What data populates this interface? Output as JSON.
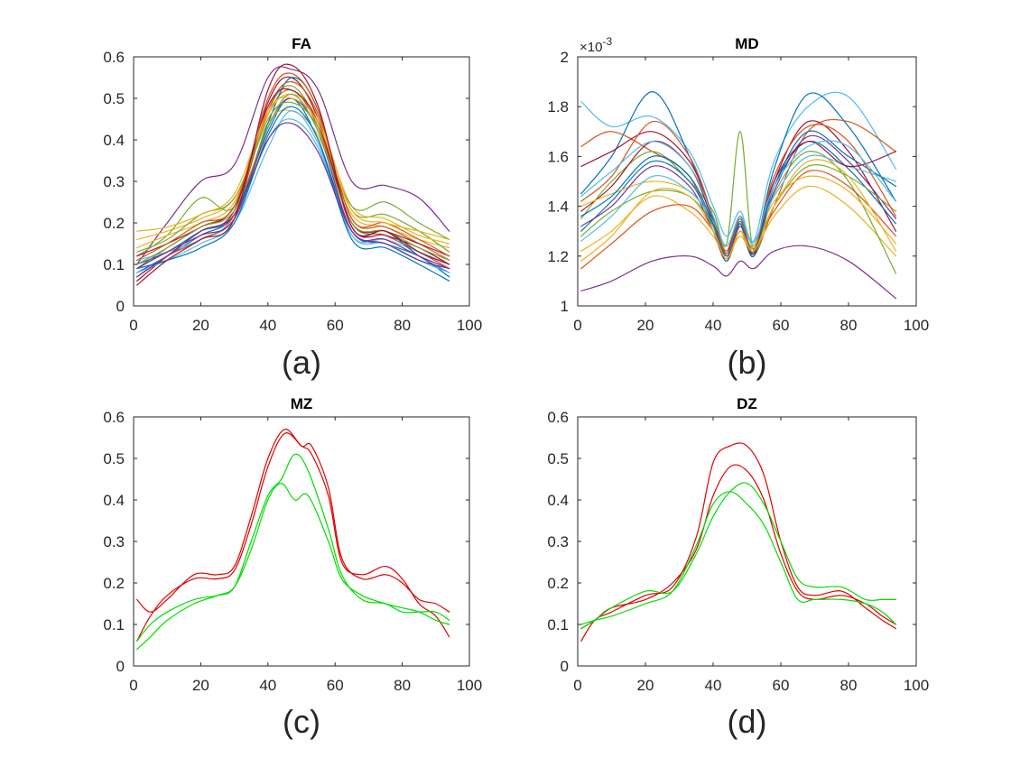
{
  "chart_data": [
    {
      "type": "line",
      "title": "FA",
      "caption": "(a)",
      "xlim": [
        0,
        100
      ],
      "ylim": [
        0,
        0.6
      ],
      "xticks": [
        "0",
        "20",
        "40",
        "60",
        "80",
        "100"
      ],
      "yticks": [
        "0",
        "0.1",
        "0.2",
        "0.3",
        "0.4",
        "0.5",
        "0.6"
      ],
      "x_sample": [
        1,
        10,
        20,
        30,
        40,
        47,
        55,
        65,
        75,
        85,
        94
      ],
      "series": [
        {
          "color": "#7E2F8E",
          "values": [
            0.1,
            0.2,
            0.3,
            0.34,
            0.55,
            0.57,
            0.52,
            0.3,
            0.29,
            0.26,
            0.18
          ]
        },
        {
          "color": "#0072BD",
          "values": [
            0.08,
            0.12,
            0.17,
            0.22,
            0.42,
            0.5,
            0.4,
            0.18,
            0.15,
            0.12,
            0.07
          ]
        },
        {
          "color": "#D95319",
          "values": [
            0.09,
            0.14,
            0.19,
            0.24,
            0.46,
            0.52,
            0.43,
            0.2,
            0.17,
            0.13,
            0.09
          ]
        },
        {
          "color": "#EDB120",
          "values": [
            0.16,
            0.18,
            0.21,
            0.26,
            0.44,
            0.47,
            0.41,
            0.22,
            0.19,
            0.16,
            0.14
          ]
        },
        {
          "color": "#77AC30",
          "values": [
            0.12,
            0.17,
            0.26,
            0.24,
            0.47,
            0.53,
            0.44,
            0.23,
            0.22,
            0.18,
            0.13
          ]
        },
        {
          "color": "#4DBEEE",
          "values": [
            0.11,
            0.13,
            0.16,
            0.21,
            0.4,
            0.45,
            0.38,
            0.17,
            0.16,
            0.13,
            0.1
          ]
        },
        {
          "color": "#A2142F",
          "values": [
            0.06,
            0.12,
            0.18,
            0.23,
            0.49,
            0.55,
            0.45,
            0.19,
            0.17,
            0.14,
            0.1
          ]
        },
        {
          "color": "#0072BD",
          "values": [
            0.1,
            0.13,
            0.18,
            0.22,
            0.44,
            0.55,
            0.47,
            0.19,
            0.18,
            0.12,
            0.08
          ]
        },
        {
          "color": "#D95319",
          "values": [
            0.07,
            0.12,
            0.16,
            0.22,
            0.47,
            0.54,
            0.46,
            0.21,
            0.19,
            0.15,
            0.11
          ]
        },
        {
          "color": "#EDB120",
          "values": [
            0.14,
            0.17,
            0.2,
            0.25,
            0.46,
            0.51,
            0.45,
            0.24,
            0.21,
            0.17,
            0.15
          ]
        },
        {
          "color": "#7E2F8E",
          "values": [
            0.09,
            0.13,
            0.17,
            0.21,
            0.43,
            0.5,
            0.42,
            0.18,
            0.16,
            0.12,
            0.09
          ]
        },
        {
          "color": "#77AC30",
          "values": [
            0.13,
            0.16,
            0.22,
            0.26,
            0.45,
            0.49,
            0.43,
            0.24,
            0.25,
            0.2,
            0.16
          ]
        },
        {
          "color": "#4DBEEE",
          "values": [
            0.08,
            0.11,
            0.15,
            0.2,
            0.38,
            0.47,
            0.39,
            0.17,
            0.15,
            0.11,
            0.08
          ]
        },
        {
          "color": "#A2142F",
          "values": [
            0.12,
            0.15,
            0.19,
            0.24,
            0.48,
            0.52,
            0.44,
            0.2,
            0.18,
            0.15,
            0.12
          ]
        },
        {
          "color": "#0072BD",
          "values": [
            0.09,
            0.11,
            0.14,
            0.2,
            0.41,
            0.48,
            0.4,
            0.16,
            0.14,
            0.1,
            0.06
          ]
        },
        {
          "color": "#D95319",
          "values": [
            0.11,
            0.15,
            0.2,
            0.24,
            0.5,
            0.56,
            0.47,
            0.21,
            0.2,
            0.16,
            0.12
          ]
        },
        {
          "color": "#EDB120",
          "values": [
            0.18,
            0.19,
            0.22,
            0.27,
            0.47,
            0.5,
            0.44,
            0.23,
            0.2,
            0.18,
            0.16
          ]
        },
        {
          "color": "#7E2F8E",
          "values": [
            0.07,
            0.12,
            0.18,
            0.22,
            0.4,
            0.44,
            0.37,
            0.18,
            0.15,
            0.11,
            0.09
          ]
        },
        {
          "color": "#77AC30",
          "values": [
            0.1,
            0.14,
            0.19,
            0.23,
            0.43,
            0.51,
            0.42,
            0.2,
            0.18,
            0.14,
            0.11
          ]
        },
        {
          "color": "#A2142F",
          "values": [
            0.05,
            0.11,
            0.16,
            0.21,
            0.52,
            0.58,
            0.48,
            0.19,
            0.18,
            0.13,
            0.1
          ]
        }
      ]
    },
    {
      "type": "line",
      "title": "MD",
      "caption": "(b)",
      "xlim": [
        0,
        100
      ],
      "ylim": [
        1,
        2
      ],
      "exponent_label": "×10",
      "exponent_power": "-3",
      "xticks": [
        "0",
        "20",
        "40",
        "60",
        "80",
        "100"
      ],
      "yticks": [
        "1",
        "1.2",
        "1.4",
        "1.6",
        "1.8",
        "2"
      ],
      "x_sample": [
        1,
        10,
        22,
        33,
        40,
        44,
        48,
        52,
        58,
        68,
        80,
        94
      ],
      "series": [
        {
          "color": "#4DBEEE",
          "values": [
            1.82,
            1.72,
            1.76,
            1.62,
            1.4,
            1.28,
            1.38,
            1.26,
            1.58,
            1.8,
            1.84,
            1.55
          ]
        },
        {
          "color": "#0072BD",
          "values": [
            1.45,
            1.6,
            1.86,
            1.6,
            1.35,
            1.2,
            1.32,
            1.22,
            1.55,
            1.85,
            1.72,
            1.42
          ]
        },
        {
          "color": "#D95319",
          "values": [
            1.64,
            1.7,
            1.62,
            1.52,
            1.3,
            1.18,
            1.3,
            1.2,
            1.4,
            1.7,
            1.74,
            1.62
          ]
        },
        {
          "color": "#7E2F8E",
          "values": [
            1.06,
            1.1,
            1.18,
            1.2,
            1.16,
            1.12,
            1.18,
            1.15,
            1.22,
            1.24,
            1.18,
            1.03
          ]
        },
        {
          "color": "#EDB120",
          "values": [
            1.22,
            1.3,
            1.44,
            1.38,
            1.28,
            1.2,
            1.28,
            1.22,
            1.36,
            1.48,
            1.4,
            1.2
          ]
        },
        {
          "color": "#77AC30",
          "values": [
            1.35,
            1.5,
            1.62,
            1.5,
            1.38,
            1.25,
            1.7,
            1.22,
            1.45,
            1.62,
            1.5,
            1.13
          ]
        },
        {
          "color": "#A2142F",
          "values": [
            1.38,
            1.48,
            1.66,
            1.56,
            1.34,
            1.22,
            1.36,
            1.22,
            1.5,
            1.74,
            1.62,
            1.3
          ]
        },
        {
          "color": "#0072BD",
          "values": [
            1.3,
            1.42,
            1.58,
            1.5,
            1.32,
            1.18,
            1.34,
            1.2,
            1.48,
            1.66,
            1.55,
            1.33
          ]
        },
        {
          "color": "#D95319",
          "values": [
            1.15,
            1.25,
            1.38,
            1.4,
            1.3,
            1.2,
            1.3,
            1.24,
            1.38,
            1.54,
            1.48,
            1.28
          ]
        },
        {
          "color": "#EDB120",
          "values": [
            1.4,
            1.45,
            1.5,
            1.46,
            1.34,
            1.22,
            1.3,
            1.24,
            1.42,
            1.52,
            1.46,
            1.25
          ]
        },
        {
          "color": "#7E2F8E",
          "values": [
            1.32,
            1.4,
            1.56,
            1.48,
            1.3,
            1.19,
            1.32,
            1.21,
            1.46,
            1.68,
            1.58,
            1.35
          ]
        },
        {
          "color": "#4DBEEE",
          "values": [
            1.26,
            1.36,
            1.52,
            1.46,
            1.34,
            1.24,
            1.36,
            1.26,
            1.44,
            1.6,
            1.56,
            1.5
          ]
        },
        {
          "color": "#77AC30",
          "values": [
            1.28,
            1.38,
            1.46,
            1.44,
            1.32,
            1.21,
            1.33,
            1.23,
            1.4,
            1.56,
            1.52,
            1.38
          ]
        },
        {
          "color": "#A2142F",
          "values": [
            1.56,
            1.62,
            1.7,
            1.58,
            1.36,
            1.21,
            1.36,
            1.21,
            1.5,
            1.66,
            1.56,
            1.62
          ]
        },
        {
          "color": "#0072BD",
          "values": [
            1.36,
            1.44,
            1.6,
            1.52,
            1.33,
            1.2,
            1.33,
            1.2,
            1.48,
            1.7,
            1.6,
            1.48
          ]
        },
        {
          "color": "#D95319",
          "values": [
            1.42,
            1.52,
            1.74,
            1.6,
            1.36,
            1.21,
            1.35,
            1.22,
            1.52,
            1.72,
            1.66,
            1.36
          ]
        },
        {
          "color": "#EDB120",
          "values": [
            1.18,
            1.28,
            1.46,
            1.44,
            1.3,
            1.19,
            1.3,
            1.22,
            1.4,
            1.58,
            1.52,
            1.22
          ]
        },
        {
          "color": "#4DBEEE",
          "values": [
            1.44,
            1.54,
            1.66,
            1.56,
            1.36,
            1.24,
            1.36,
            1.25,
            1.48,
            1.64,
            1.64,
            1.42
          ]
        }
      ]
    },
    {
      "type": "line",
      "title": "MZ",
      "caption": "(c)",
      "xlim": [
        0,
        100
      ],
      "ylim": [
        0,
        0.6
      ],
      "xticks": [
        "0",
        "20",
        "40",
        "60",
        "80",
        "100"
      ],
      "yticks": [
        "0",
        "0.1",
        "0.2",
        "0.3",
        "0.4",
        "0.5",
        "0.6"
      ],
      "series": [
        {
          "color": "#E00000",
          "x": [
            1,
            5,
            10,
            18,
            25,
            30,
            35,
            40,
            45,
            50,
            53,
            58,
            62,
            68,
            75,
            80,
            85,
            90,
            94
          ],
          "values": [
            0.16,
            0.13,
            0.16,
            0.22,
            0.22,
            0.24,
            0.36,
            0.5,
            0.57,
            0.53,
            0.53,
            0.43,
            0.26,
            0.21,
            0.22,
            0.2,
            0.16,
            0.15,
            0.13
          ]
        },
        {
          "color": "#E00000",
          "x": [
            1,
            5,
            10,
            18,
            25,
            30,
            35,
            40,
            45,
            50,
            53,
            58,
            62,
            68,
            75,
            80,
            85,
            90,
            94
          ],
          "values": [
            0.06,
            0.12,
            0.17,
            0.21,
            0.21,
            0.23,
            0.34,
            0.48,
            0.56,
            0.53,
            0.51,
            0.41,
            0.25,
            0.22,
            0.24,
            0.21,
            0.15,
            0.12,
            0.07
          ]
        },
        {
          "color": "#00DD00",
          "x": [
            1,
            5,
            10,
            18,
            25,
            30,
            35,
            40,
            44,
            48,
            52,
            58,
            62,
            68,
            75,
            80,
            85,
            90,
            94
          ],
          "values": [
            0.06,
            0.1,
            0.13,
            0.16,
            0.17,
            0.19,
            0.3,
            0.41,
            0.45,
            0.51,
            0.47,
            0.33,
            0.22,
            0.16,
            0.15,
            0.13,
            0.13,
            0.13,
            0.11
          ]
        },
        {
          "color": "#00DD00",
          "x": [
            1,
            5,
            10,
            18,
            25,
            30,
            35,
            40,
            44,
            48,
            52,
            58,
            62,
            68,
            75,
            80,
            85,
            90,
            94
          ],
          "values": [
            0.04,
            0.07,
            0.11,
            0.15,
            0.17,
            0.19,
            0.28,
            0.4,
            0.44,
            0.4,
            0.41,
            0.3,
            0.21,
            0.17,
            0.15,
            0.14,
            0.13,
            0.11,
            0.1
          ]
        }
      ]
    },
    {
      "type": "line",
      "title": "DZ",
      "caption": "(d)",
      "xlim": [
        0,
        100
      ],
      "ylim": [
        0,
        0.6
      ],
      "xticks": [
        "0",
        "20",
        "40",
        "60",
        "80",
        "100"
      ],
      "yticks": [
        "0",
        "0.1",
        "0.2",
        "0.3",
        "0.4",
        "0.5",
        "0.6"
      ],
      "series": [
        {
          "color": "#E00000",
          "x": [
            1,
            5,
            10,
            20,
            28,
            35,
            40,
            45,
            50,
            55,
            60,
            65,
            70,
            78,
            85,
            90,
            94
          ],
          "values": [
            0.06,
            0.11,
            0.13,
            0.17,
            0.19,
            0.31,
            0.49,
            0.53,
            0.53,
            0.46,
            0.3,
            0.19,
            0.17,
            0.18,
            0.14,
            0.11,
            0.09
          ]
        },
        {
          "color": "#E00000",
          "x": [
            1,
            5,
            10,
            20,
            28,
            35,
            40,
            45,
            50,
            55,
            60,
            65,
            70,
            78,
            85,
            90,
            94
          ],
          "values": [
            0.09,
            0.11,
            0.14,
            0.16,
            0.2,
            0.28,
            0.41,
            0.48,
            0.47,
            0.4,
            0.27,
            0.18,
            0.16,
            0.17,
            0.15,
            0.12,
            0.1
          ]
        },
        {
          "color": "#00DD00",
          "x": [
            1,
            5,
            10,
            20,
            28,
            35,
            40,
            45,
            50,
            55,
            60,
            65,
            70,
            78,
            85,
            90,
            94
          ],
          "values": [
            0.09,
            0.11,
            0.14,
            0.18,
            0.18,
            0.27,
            0.36,
            0.42,
            0.44,
            0.39,
            0.3,
            0.21,
            0.19,
            0.19,
            0.16,
            0.16,
            0.16
          ]
        },
        {
          "color": "#00DD00",
          "x": [
            1,
            5,
            10,
            20,
            28,
            35,
            40,
            45,
            50,
            55,
            60,
            65,
            70,
            78,
            85,
            90,
            94
          ],
          "values": [
            0.1,
            0.11,
            0.12,
            0.15,
            0.18,
            0.29,
            0.39,
            0.42,
            0.39,
            0.34,
            0.25,
            0.16,
            0.16,
            0.16,
            0.15,
            0.13,
            0.1
          ]
        }
      ]
    }
  ]
}
